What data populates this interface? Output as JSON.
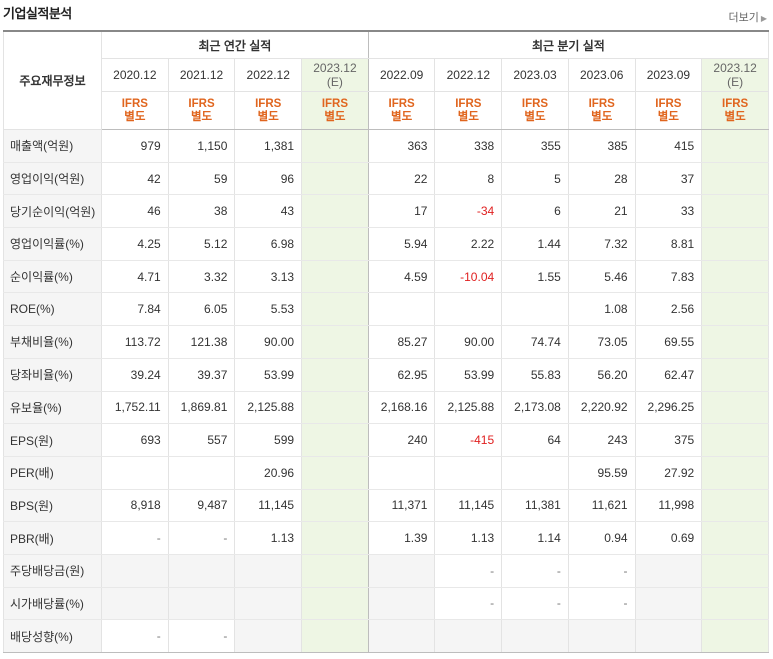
{
  "title": "기업실적분석",
  "more_label": "더보기",
  "header": {
    "label_col": "주요재무정보",
    "annual_group": "최근 연간 실적",
    "quarter_group": "최근 분기 실적",
    "annual_periods": [
      "2020.12",
      "2021.12",
      "2022.12",
      "2023.12"
    ],
    "annual_est_suffix": "(E)",
    "quarter_periods": [
      "2022.09",
      "2022.12",
      "2023.03",
      "2023.06",
      "2023.09",
      "2023.12"
    ],
    "quarter_est_suffix": "(E)",
    "ifrs_line1": "IFRS",
    "ifrs_line2": "별도"
  },
  "rows": [
    {
      "label": "매출액(억원)",
      "annual": [
        "979",
        "1,150",
        "1,381",
        ""
      ],
      "quarter": [
        "363",
        "338",
        "355",
        "385",
        "415",
        ""
      ]
    },
    {
      "label": "영업이익(억원)",
      "annual": [
        "42",
        "59",
        "96",
        ""
      ],
      "quarter": [
        "22",
        "8",
        "5",
        "28",
        "37",
        ""
      ]
    },
    {
      "label": "당기순이익(억원)",
      "annual": [
        "46",
        "38",
        "43",
        ""
      ],
      "quarter": [
        "17",
        "-34",
        "6",
        "21",
        "33",
        ""
      ]
    },
    {
      "label": "영업이익률(%)",
      "annual": [
        "4.25",
        "5.12",
        "6.98",
        ""
      ],
      "quarter": [
        "5.94",
        "2.22",
        "1.44",
        "7.32",
        "8.81",
        ""
      ]
    },
    {
      "label": "순이익률(%)",
      "annual": [
        "4.71",
        "3.32",
        "3.13",
        ""
      ],
      "quarter": [
        "4.59",
        "-10.04",
        "1.55",
        "5.46",
        "7.83",
        ""
      ]
    },
    {
      "label": "ROE(%)",
      "annual": [
        "7.84",
        "6.05",
        "5.53",
        ""
      ],
      "quarter": [
        "",
        "",
        "",
        "1.08",
        "2.56",
        ""
      ]
    },
    {
      "label": "부채비율(%)",
      "annual": [
        "113.72",
        "121.38",
        "90.00",
        ""
      ],
      "quarter": [
        "85.27",
        "90.00",
        "74.74",
        "73.05",
        "69.55",
        ""
      ]
    },
    {
      "label": "당좌비율(%)",
      "annual": [
        "39.24",
        "39.37",
        "53.99",
        ""
      ],
      "quarter": [
        "62.95",
        "53.99",
        "55.83",
        "56.20",
        "62.47",
        ""
      ]
    },
    {
      "label": "유보율(%)",
      "annual": [
        "1,752.11",
        "1,869.81",
        "2,125.88",
        ""
      ],
      "quarter": [
        "2,168.16",
        "2,125.88",
        "2,173.08",
        "2,220.92",
        "2,296.25",
        ""
      ]
    },
    {
      "label": "EPS(원)",
      "annual": [
        "693",
        "557",
        "599",
        ""
      ],
      "quarter": [
        "240",
        "-415",
        "64",
        "243",
        "375",
        ""
      ]
    },
    {
      "label": "PER(배)",
      "annual": [
        "",
        "",
        "20.96",
        ""
      ],
      "quarter": [
        "",
        "",
        "",
        "95.59",
        "27.92",
        ""
      ]
    },
    {
      "label": "BPS(원)",
      "annual": [
        "8,918",
        "9,487",
        "11,145",
        ""
      ],
      "quarter": [
        "11,371",
        "11,145",
        "11,381",
        "11,621",
        "11,998",
        ""
      ]
    },
    {
      "label": "PBR(배)",
      "annual": [
        "-",
        "-",
        "1.13",
        ""
      ],
      "quarter": [
        "1.39",
        "1.13",
        "1.14",
        "0.94",
        "0.69",
        ""
      ]
    },
    {
      "label": "주당배당금(원)",
      "annual": [
        "",
        "",
        "",
        ""
      ],
      "quarter": [
        "",
        "-",
        "-",
        "-",
        "",
        ""
      ]
    },
    {
      "label": "시가배당률(%)",
      "annual": [
        "",
        "",
        "",
        ""
      ],
      "quarter": [
        "",
        "-",
        "-",
        "-",
        "",
        ""
      ]
    },
    {
      "label": "배당성향(%)",
      "annual": [
        "-",
        "-",
        "",
        ""
      ],
      "quarter": [
        "",
        "",
        "",
        "",
        "",
        ""
      ]
    }
  ],
  "colors": {
    "accent_orange": "#e0651e",
    "negative_red": "#e02020",
    "estimate_bg": "#eef6e4",
    "label_bg": "#f5f5f5"
  }
}
